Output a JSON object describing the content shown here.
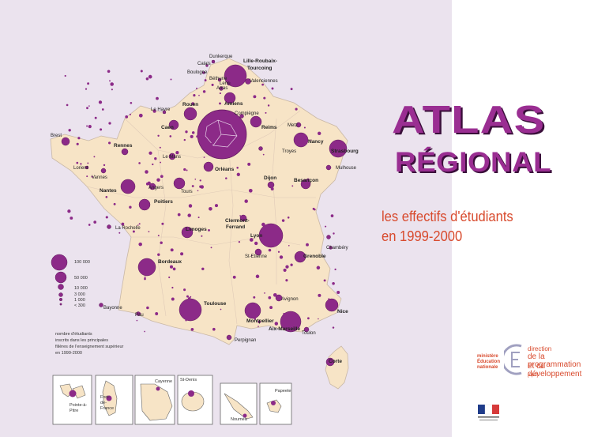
{
  "title": {
    "line1": "ATLAS",
    "line2": "RÉGIONAL"
  },
  "subtitle": {
    "line1": "les effectifs d'étudiants",
    "line2": "en 1999-2000"
  },
  "legend": {
    "sizes": [
      {
        "label": "100 000",
        "value": 100000
      },
      {
        "label": "50 000",
        "value": 50000
      },
      {
        "label": "10 000",
        "value": 10000
      },
      {
        "label": "3 000",
        "value": 3000
      },
      {
        "label": "1 000",
        "value": 1000
      },
      {
        "label": "< 300",
        "value": 300
      }
    ],
    "description": [
      "nombre d'étudiants",
      "inscrits dans les principales",
      "filières de l'enseignement supérieur",
      "en 1999-2000"
    ]
  },
  "cities": [
    {
      "name": "Dunkerque",
      "bold": false
    },
    {
      "name": "Calais",
      "bold": false
    },
    {
      "name": "Boulogne",
      "bold": false
    },
    {
      "name": "Lille-Roubaix-",
      "bold": true
    },
    {
      "name": "Tourcoing",
      "bold": true
    },
    {
      "name": "Béthune",
      "bold": false
    },
    {
      "name": "Lens",
      "bold": false
    },
    {
      "name": "Valenciennes",
      "bold": false
    },
    {
      "name": "Arras",
      "bold": false
    },
    {
      "name": "Amiens",
      "bold": true
    },
    {
      "name": "Le Havre",
      "bold": false
    },
    {
      "name": "Rouen",
      "bold": true
    },
    {
      "name": "Compiègne",
      "bold": false
    },
    {
      "name": "Caen",
      "bold": true
    },
    {
      "name": "Reims",
      "bold": true
    },
    {
      "name": "Metz",
      "bold": false
    },
    {
      "name": "Brest",
      "bold": false
    },
    {
      "name": "Nancy",
      "bold": true
    },
    {
      "name": "Troyes",
      "bold": false
    },
    {
      "name": "Strasbourg",
      "bold": true
    },
    {
      "name": "Rennes",
      "bold": true
    },
    {
      "name": "Le Mans",
      "bold": false
    },
    {
      "name": "Orléans",
      "bold": true
    },
    {
      "name": "Mulhouse",
      "bold": false
    },
    {
      "name": "Lorient",
      "bold": false
    },
    {
      "name": "Vannes",
      "bold": false
    },
    {
      "name": "Angers",
      "bold": false
    },
    {
      "name": "Dijon",
      "bold": true
    },
    {
      "name": "Besançon",
      "bold": true
    },
    {
      "name": "Nantes",
      "bold": true
    },
    {
      "name": "Tours",
      "bold": false
    },
    {
      "name": "Poitiers",
      "bold": true
    },
    {
      "name": "Clermont-",
      "bold": true
    },
    {
      "name": "Ferrand",
      "bold": true
    },
    {
      "name": "La Rochelle",
      "bold": false
    },
    {
      "name": "Limoges",
      "bold": true
    },
    {
      "name": "Lyon",
      "bold": true
    },
    {
      "name": "Chambéry",
      "bold": false
    },
    {
      "name": "St-Etienne",
      "bold": false
    },
    {
      "name": "Grenoble",
      "bold": true
    },
    {
      "name": "Bordeaux",
      "bold": true
    },
    {
      "name": "Avignon",
      "bold": false
    },
    {
      "name": "Bayonne",
      "bold": false
    },
    {
      "name": "Toulouse",
      "bold": true
    },
    {
      "name": "Nice",
      "bold": true
    },
    {
      "name": "Pau",
      "bold": false
    },
    {
      "name": "Montpellier",
      "bold": true
    },
    {
      "name": "Aix-Marseille",
      "bold": true
    },
    {
      "name": "Toulon",
      "bold": false
    },
    {
      "name": "Perpignan",
      "bold": false
    },
    {
      "name": "Corte",
      "bold": true
    }
  ],
  "insets": [
    {
      "label": "Pointe-à-\nPitre"
    },
    {
      "label": "Fort-\nde-\nFrance"
    },
    {
      "label": "Cayenne"
    },
    {
      "label": "St-Denis"
    },
    {
      "label": "Nouméa"
    },
    {
      "label": "Papeete"
    }
  ],
  "logo": {
    "ministry": [
      "ministère",
      "Éducation",
      "nationale"
    ],
    "direction": [
      "direction",
      "de la programmation",
      "et du développement"
    ],
    "code": "[dpd]"
  },
  "colors": {
    "background": "#ebe3ee",
    "land": "#f7e4c6",
    "circle": "#8c2a88",
    "title": "#9a2e92",
    "subtitle": "#d84a2d"
  }
}
